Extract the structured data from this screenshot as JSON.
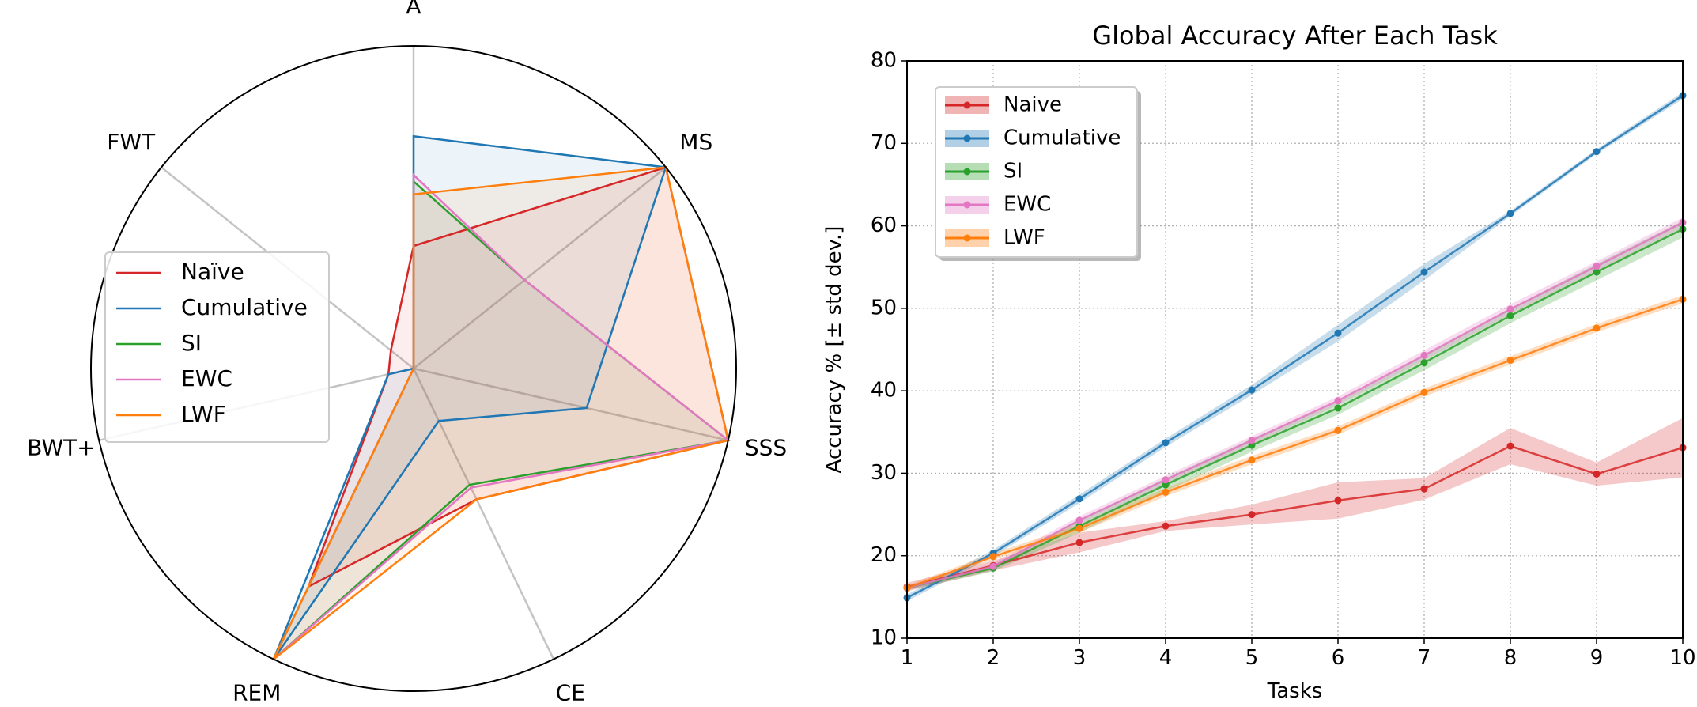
{
  "chart_data": [
    {
      "type": "radar",
      "axes": [
        "A",
        "MS",
        "SSS",
        "CE",
        "REM",
        "BWT+",
        "FWT"
      ],
      "rlim": [
        0,
        1
      ],
      "legend_location": "left",
      "series": [
        {
          "name": "Naïve",
          "color": "#d62728",
          "values": [
            0.38,
            1.0,
            1.0,
            0.45,
            0.75,
            0.08,
            0.09
          ]
        },
        {
          "name": "Cumulative",
          "color": "#1f77b4",
          "values": [
            0.72,
            1.0,
            0.55,
            0.18,
            1.0,
            0.08,
            0.0
          ]
        },
        {
          "name": "SI",
          "color": "#2ca02c",
          "values": [
            0.58,
            0.44,
            1.0,
            0.4,
            1.0,
            0.0,
            0.0
          ]
        },
        {
          "name": "EWC",
          "color": "#e377c2",
          "values": [
            0.6,
            0.44,
            1.0,
            0.41,
            1.0,
            0.0,
            0.0
          ]
        },
        {
          "name": "LWF",
          "color": "#ff7f0e",
          "values": [
            0.54,
            1.0,
            1.0,
            0.45,
            1.0,
            0.0,
            0.0
          ]
        }
      ]
    },
    {
      "type": "line",
      "title": "Global Accuracy After Each Task",
      "xlabel": "Tasks",
      "ylabel": "Accuracy % [± std dev.]",
      "xlim": [
        1,
        10
      ],
      "ylim": [
        10,
        80
      ],
      "xticks": [
        "1",
        "2",
        "3",
        "4",
        "5",
        "6",
        "7",
        "8",
        "9",
        "10"
      ],
      "yticks": [
        "10",
        "20",
        "30",
        "40",
        "50",
        "60",
        "70",
        "80"
      ],
      "grid": true,
      "legend_location": "top-left",
      "x": [
        1,
        2,
        3,
        4,
        5,
        6,
        7,
        8,
        9,
        10
      ],
      "series": [
        {
          "name": "Naive",
          "color": "#d62728",
          "values": [
            16.2,
            18.8,
            21.6,
            23.6,
            25.0,
            26.7,
            28.1,
            33.3,
            29.9,
            33.1
          ],
          "std": [
            0.5,
            0.6,
            1.2,
            0.6,
            1.2,
            2.2,
            1.3,
            2.2,
            1.4,
            3.6
          ]
        },
        {
          "name": "Cumulative",
          "color": "#1f77b4",
          "values": [
            14.9,
            20.3,
            26.9,
            33.7,
            40.1,
            47.0,
            54.4,
            61.5,
            69.0,
            75.8
          ],
          "std": [
            0.4,
            0.4,
            0.5,
            0.5,
            0.6,
            1.0,
            1.0,
            0.3,
            0.3,
            0.4
          ]
        },
        {
          "name": "SI",
          "color": "#2ca02c",
          "values": [
            16.1,
            18.5,
            23.6,
            28.6,
            33.4,
            37.9,
            43.4,
            49.1,
            54.4,
            59.6
          ],
          "std": [
            0.3,
            0.4,
            0.8,
            0.8,
            0.8,
            0.8,
            0.9,
            0.9,
            1.0,
            1.0
          ]
        },
        {
          "name": "EWC",
          "color": "#e377c2",
          "values": [
            16.1,
            18.7,
            24.3,
            29.2,
            34.0,
            38.8,
            44.3,
            49.9,
            55.1,
            60.4
          ],
          "std": [
            0.3,
            0.4,
            0.5,
            0.5,
            0.5,
            0.5,
            0.6,
            0.6,
            0.6,
            0.6
          ]
        },
        {
          "name": "LWF",
          "color": "#ff7f0e",
          "values": [
            16.1,
            19.9,
            23.3,
            27.7,
            31.6,
            35.2,
            39.8,
            43.7,
            47.6,
            51.1
          ],
          "std": [
            0.3,
            0.4,
            0.5,
            0.5,
            0.5,
            0.5,
            0.5,
            0.5,
            0.5,
            0.5
          ]
        }
      ]
    }
  ]
}
